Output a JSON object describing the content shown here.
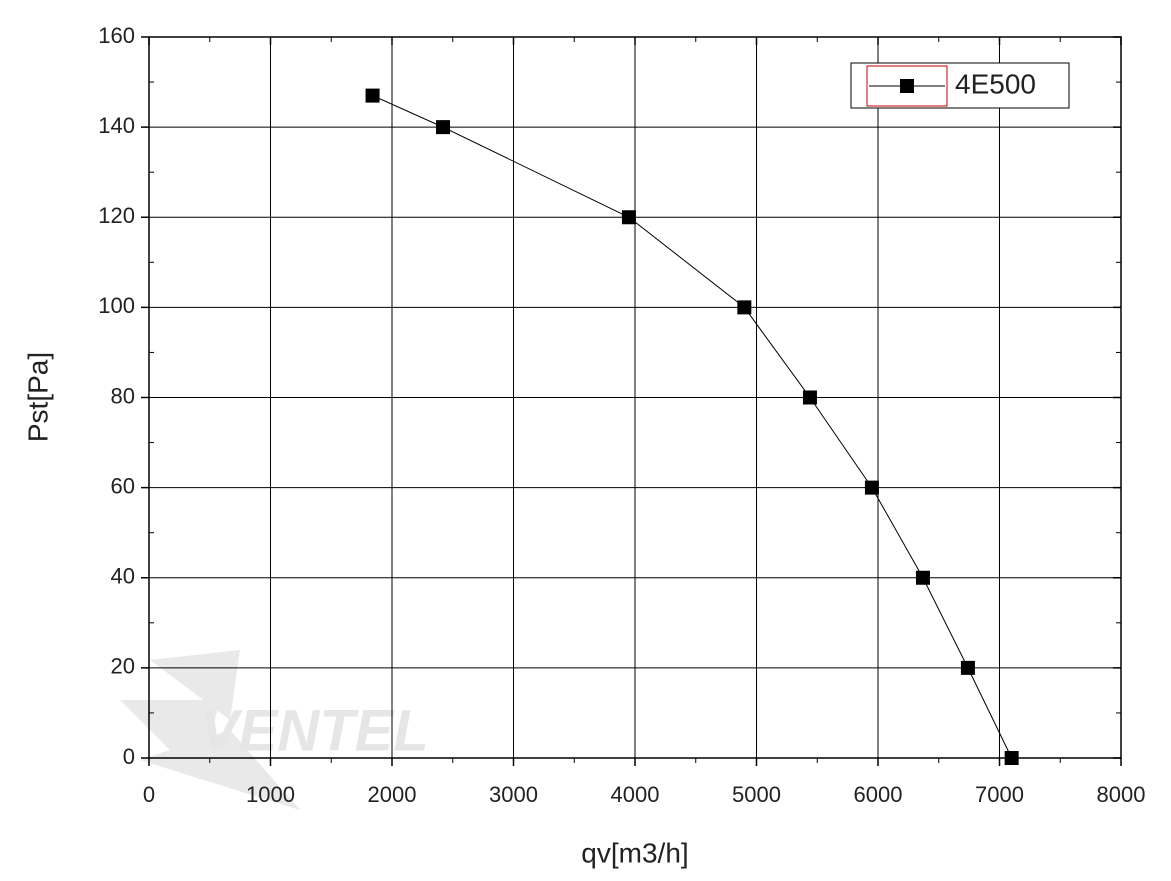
{
  "chart_data": {
    "type": "line",
    "x_label": "qv[m3/h]",
    "y_label": "Pst[Pa]",
    "watermark": "VENTEL",
    "xlim": [
      0,
      8000
    ],
    "xticks": [
      0,
      1000,
      2000,
      3000,
      4000,
      5000,
      6000,
      7000,
      8000
    ],
    "ylim": [
      0,
      160
    ],
    "yticks": [
      0,
      20,
      40,
      60,
      80,
      100,
      120,
      140,
      160
    ],
    "grid": true,
    "legend": "top-right",
    "series": [
      {
        "name": "4E500",
        "color": "#000000",
        "x": [
          1840,
          2420,
          3950,
          4900,
          5440,
          5950,
          6370,
          6740,
          7100
        ],
        "values": [
          147,
          140,
          120,
          100,
          80,
          60,
          40,
          20,
          0
        ]
      }
    ]
  }
}
